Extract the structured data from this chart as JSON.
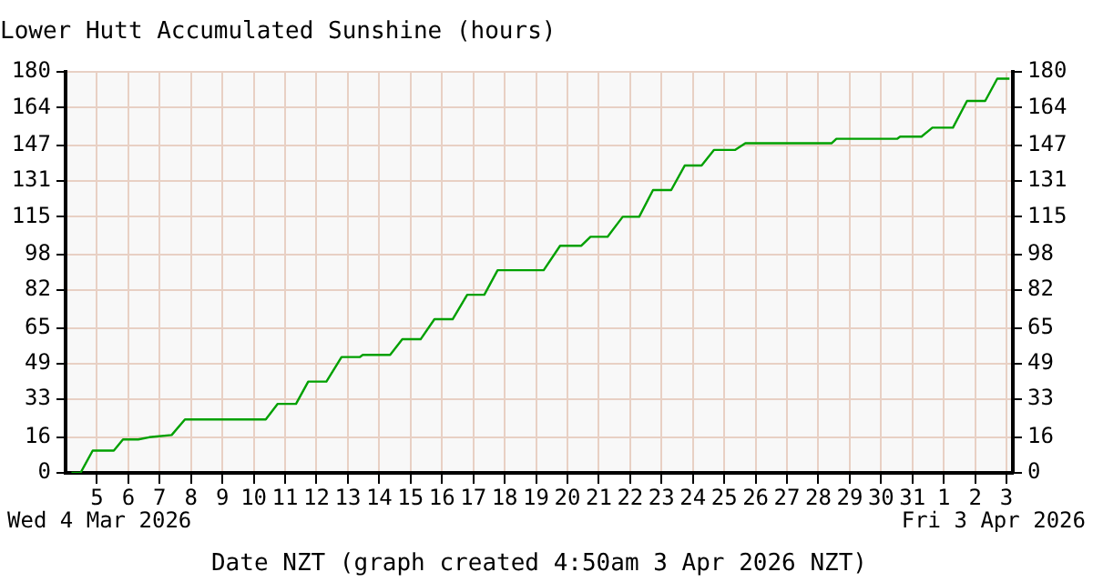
{
  "chart_data": {
    "type": "line",
    "title": "Lower Hutt Accumulated Sunshine (hours)",
    "xlabel": "Date NZT (graph created 4:50am 3 Apr 2026 NZT)",
    "annotations": [
      "Wed 4 Mar 2026",
      "Fri 3 Apr 2026"
    ],
    "x": [
      "2026-03-04T04:30",
      "2026-03-04T11:25",
      "2026-03-04T20:45",
      "2026-03-05T12:55",
      "2026-03-05T19:55",
      "2026-03-06T07:35",
      "2026-03-06T16:00",
      "2026-03-07T09:10",
      "2026-03-07T19:20",
      "2026-03-10T09:10",
      "2026-03-10T18:20",
      "2026-03-11T08:20",
      "2026-03-11T17:40",
      "2026-03-12T07:35",
      "2026-03-12T19:10",
      "2026-03-13T09:05",
      "2026-03-13T11:25",
      "2026-03-14T08:20",
      "2026-03-14T17:40",
      "2026-03-15T07:40",
      "2026-03-15T18:15",
      "2026-03-16T08:10",
      "2026-03-16T19:20",
      "2026-03-17T08:25",
      "2026-03-17T18:35",
      "2026-03-19T05:50",
      "2026-03-19T18:25",
      "2026-03-20T10:40",
      "2026-03-20T17:40",
      "2026-03-21T06:40",
      "2026-03-21T18:20",
      "2026-03-22T06:55",
      "2026-03-22T17:30",
      "2026-03-23T07:25",
      "2026-03-23T17:45",
      "2026-03-24T06:40",
      "2026-03-24T16:05",
      "2026-03-25T08:10",
      "2026-03-25T16:10",
      "2026-03-28T10:05",
      "2026-03-28T13:50",
      "2026-03-30T12:15",
      "2026-03-30T14:35",
      "2026-03-31T06:55",
      "2026-03-31T15:15",
      "2026-04-01T07:00",
      "2026-04-01T17:45",
      "2026-04-02T07:40",
      "2026-04-02T16:55",
      "2026-04-03T02:15"
    ],
    "series": [
      {
        "color": "#00a000",
        "values": [
          0,
          0,
          10,
          10,
          15,
          15,
          16,
          17,
          24,
          24,
          31,
          31,
          41,
          41,
          52,
          52,
          53,
          53,
          60,
          60,
          69,
          69,
          80,
          80,
          91,
          91,
          102,
          102,
          106,
          106,
          115,
          115,
          127,
          127,
          138,
          138,
          145,
          145,
          148,
          148,
          150,
          150,
          151,
          151,
          155,
          155,
          167,
          167,
          177,
          177
        ]
      }
    ],
    "xlim": [
      "2026-03-04T00:00",
      "2026-04-03T04:50"
    ],
    "xticks": [
      {
        "value": "2026-03-05",
        "label": "5"
      },
      {
        "value": "2026-03-06",
        "label": "6"
      },
      {
        "value": "2026-03-07",
        "label": "7"
      },
      {
        "value": "2026-03-08",
        "label": "8"
      },
      {
        "value": "2026-03-09",
        "label": "9"
      },
      {
        "value": "2026-03-10",
        "label": "10"
      },
      {
        "value": "2026-03-11",
        "label": "11"
      },
      {
        "value": "2026-03-12",
        "label": "12"
      },
      {
        "value": "2026-03-13",
        "label": "13"
      },
      {
        "value": "2026-03-14",
        "label": "14"
      },
      {
        "value": "2026-03-15",
        "label": "15"
      },
      {
        "value": "2026-03-16",
        "label": "16"
      },
      {
        "value": "2026-03-17",
        "label": "17"
      },
      {
        "value": "2026-03-18",
        "label": "18"
      },
      {
        "value": "2026-03-19",
        "label": "19"
      },
      {
        "value": "2026-03-20",
        "label": "20"
      },
      {
        "value": "2026-03-21",
        "label": "21"
      },
      {
        "value": "2026-03-22",
        "label": "22"
      },
      {
        "value": "2026-03-23",
        "label": "23"
      },
      {
        "value": "2026-03-24",
        "label": "24"
      },
      {
        "value": "2026-03-25",
        "label": "25"
      },
      {
        "value": "2026-03-26",
        "label": "26"
      },
      {
        "value": "2026-03-27",
        "label": "27"
      },
      {
        "value": "2026-03-28",
        "label": "28"
      },
      {
        "value": "2026-03-29",
        "label": "29"
      },
      {
        "value": "2026-03-30",
        "label": "30"
      },
      {
        "value": "2026-03-31",
        "label": "31"
      },
      {
        "value": "2026-04-01",
        "label": "1"
      },
      {
        "value": "2026-04-02",
        "label": "2"
      },
      {
        "value": "2026-04-03",
        "label": "3"
      }
    ],
    "ylim": [
      0,
      180
    ],
    "yticks": [
      0,
      16,
      33,
      49,
      65,
      82,
      98,
      115,
      131,
      147,
      164,
      180
    ],
    "y2lim": [
      0,
      180
    ],
    "y2ticks": [
      0,
      16,
      33,
      49,
      65,
      82,
      98,
      115,
      131,
      147,
      164,
      180
    ],
    "grid": true,
    "legend": false,
    "marker": "none",
    "line_style": "solid"
  }
}
